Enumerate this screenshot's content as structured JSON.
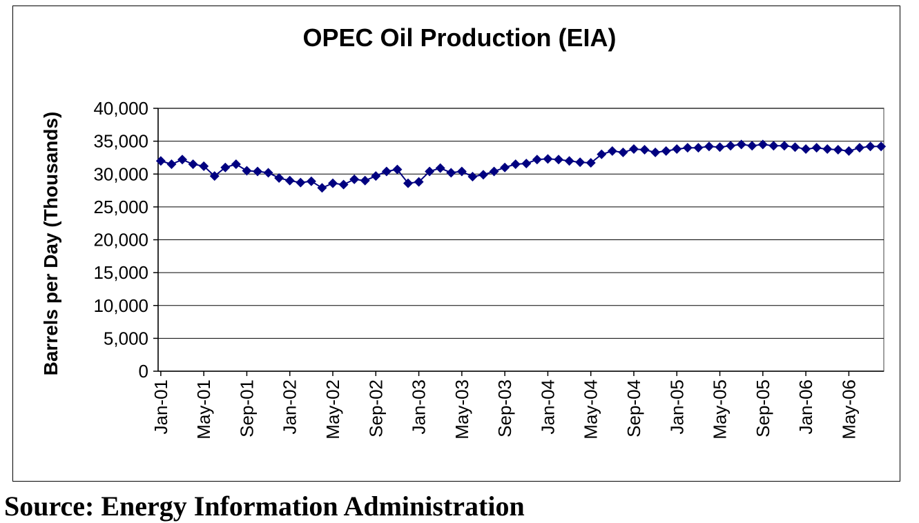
{
  "chart_data": {
    "type": "line",
    "title": "OPEC Oil Production (EIA)",
    "xlabel": "",
    "ylabel": "Barrels per Day (Thousands)",
    "ylim": [
      0,
      40000
    ],
    "y_ticks": [
      "0",
      "5,000",
      "10,000",
      "15,000",
      "20,000",
      "25,000",
      "30,000",
      "35,000",
      "40,000"
    ],
    "x_tick_labels": [
      "Jan-01",
      "May-01",
      "Sep-01",
      "Jan-02",
      "May-02",
      "Sep-02",
      "Jan-03",
      "May-03",
      "Sep-03",
      "Jan-04",
      "May-04",
      "Sep-04",
      "Jan-05",
      "May-05",
      "Sep-05",
      "Jan-06",
      "May-06"
    ],
    "grid": "horizontal",
    "legend": "none",
    "series": [
      {
        "color": "#000080",
        "marker": "diamond",
        "x": [
          "Jan-01",
          "Feb-01",
          "Mar-01",
          "Apr-01",
          "May-01",
          "Jun-01",
          "Jul-01",
          "Aug-01",
          "Sep-01",
          "Oct-01",
          "Nov-01",
          "Dec-01",
          "Jan-02",
          "Feb-02",
          "Mar-02",
          "Apr-02",
          "May-02",
          "Jun-02",
          "Jul-02",
          "Aug-02",
          "Sep-02",
          "Oct-02",
          "Nov-02",
          "Dec-02",
          "Jan-03",
          "Feb-03",
          "Mar-03",
          "Apr-03",
          "May-03",
          "Jun-03",
          "Jul-03",
          "Aug-03",
          "Sep-03",
          "Oct-03",
          "Nov-03",
          "Dec-03",
          "Jan-04",
          "Feb-04",
          "Mar-04",
          "Apr-04",
          "May-04",
          "Jun-04",
          "Jul-04",
          "Aug-04",
          "Sep-04",
          "Oct-04",
          "Nov-04",
          "Dec-04",
          "Jan-05",
          "Feb-05",
          "Mar-05",
          "Apr-05",
          "May-05",
          "Jun-05",
          "Jul-05",
          "Aug-05",
          "Sep-05",
          "Oct-05",
          "Nov-05",
          "Dec-05",
          "Jan-06",
          "Feb-06",
          "Mar-06",
          "Apr-06",
          "May-06",
          "Jun-06",
          "Jul-06",
          "Aug-06"
        ],
        "values": [
          32000,
          31500,
          32200,
          31500,
          31200,
          29700,
          31000,
          31500,
          30500,
          30400,
          30200,
          29400,
          29000,
          28700,
          28900,
          27900,
          28600,
          28400,
          29200,
          29000,
          29700,
          30400,
          30700,
          28600,
          28800,
          30400,
          30900,
          30200,
          30400,
          29600,
          29900,
          30400,
          31000,
          31500,
          31600,
          32200,
          32300,
          32200,
          32000,
          31800,
          31700,
          33000,
          33500,
          33300,
          33800,
          33700,
          33300,
          33500,
          33800,
          34000,
          34000,
          34200,
          34100,
          34300,
          34500,
          34300,
          34500,
          34300,
          34300,
          34100,
          33800,
          34000,
          33800,
          33700,
          33500,
          34000,
          34200,
          34200
        ]
      }
    ]
  },
  "source": "Source: Energy Information Administration"
}
